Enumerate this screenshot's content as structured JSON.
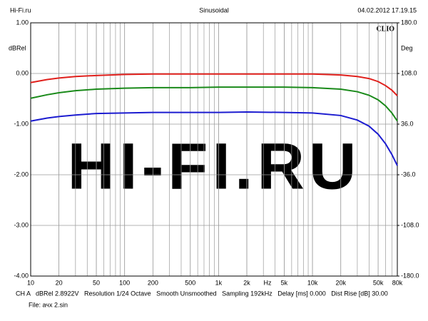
{
  "chart_data": {
    "type": "line",
    "header_left": "Hi-Fi.ru",
    "title": "Sinusoidal",
    "header_right": "04.02.2012 17.19.15",
    "brand": "CLIO",
    "watermark": "HI-FI.RU",
    "ylabel": "dBRel",
    "y2label": "Deg",
    "xlabel": "Hz",
    "xscale": "log",
    "grid": true,
    "x": [
      10,
      15,
      20,
      30,
      50,
      100,
      200,
      500,
      1000,
      2000,
      5000,
      10000,
      20000,
      30000,
      40000,
      50000,
      60000,
      70000,
      80000
    ],
    "series": [
      {
        "color": "#e0201c",
        "values": [
          -0.18,
          -0.12,
          -0.09,
          -0.06,
          -0.04,
          -0.02,
          -0.01,
          -0.01,
          -0.01,
          -0.01,
          -0.01,
          -0.01,
          -0.03,
          -0.06,
          -0.1,
          -0.16,
          -0.24,
          -0.33,
          -0.44
        ]
      },
      {
        "color": "#1a8a1a",
        "values": [
          -0.49,
          -0.42,
          -0.38,
          -0.34,
          -0.31,
          -0.29,
          -0.28,
          -0.28,
          -0.27,
          -0.27,
          -0.27,
          -0.28,
          -0.31,
          -0.36,
          -0.43,
          -0.52,
          -0.64,
          -0.78,
          -0.94
        ]
      },
      {
        "color": "#1c1cd0",
        "values": [
          -0.94,
          -0.88,
          -0.85,
          -0.82,
          -0.79,
          -0.78,
          -0.77,
          -0.77,
          -0.77,
          -0.76,
          -0.77,
          -0.78,
          -0.83,
          -0.92,
          -1.04,
          -1.2,
          -1.39,
          -1.6,
          -1.82
        ]
      }
    ],
    "xlim": [
      10,
      80000
    ],
    "xticks": [
      10,
      20,
      50,
      100,
      200,
      500,
      {
        "value": 1000,
        "label": "1k"
      },
      {
        "value": 2000,
        "label": "2k"
      },
      {
        "value": 5000,
        "label": "5k"
      },
      {
        "value": 10000,
        "label": "10k"
      },
      {
        "value": 20000,
        "label": "20k"
      },
      {
        "value": 50000,
        "label": "50k"
      },
      {
        "value": 80000,
        "label": "80k"
      }
    ],
    "ylim": [
      -4,
      1
    ],
    "yticks": [
      {
        "value": 1,
        "label": "1.00"
      },
      {
        "value": 0,
        "label": "0.00"
      },
      {
        "value": -1,
        "label": "-1.00"
      },
      {
        "value": -2,
        "label": "-2.00"
      },
      {
        "value": -3,
        "label": "-3.00"
      },
      {
        "value": -4,
        "label": "-4.00"
      }
    ],
    "y2lim": [
      -180,
      180
    ],
    "y2ticks": [
      {
        "value": 180,
        "label": "180.0"
      },
      {
        "value": 108,
        "label": "108.0"
      },
      {
        "value": 36,
        "label": "36.0"
      },
      {
        "value": -36,
        "label": "-36.0"
      },
      {
        "value": -108,
        "label": "-108.0"
      },
      {
        "value": -180,
        "label": "-180.0"
      }
    ],
    "footer": "CH A   dBRel 2.8922V   Resolution 1/24 Octave   Smooth Unsmoothed   Sampling 192kHz   Delay [ms] 0.000   Dist Rise [dB] 30.00",
    "file": "File: ачх 2.sin"
  }
}
